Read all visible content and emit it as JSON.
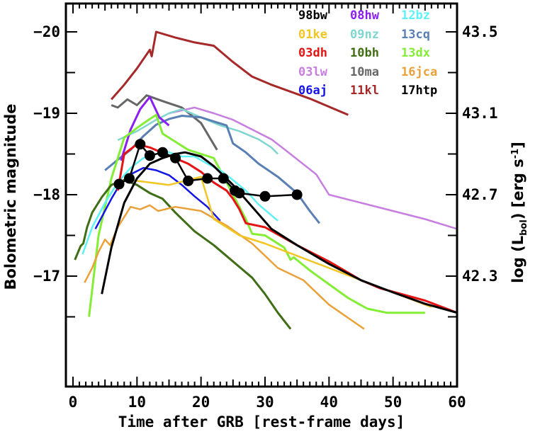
{
  "chart_data": {
    "type": "line",
    "title": "",
    "xlabel": "Time after GRB [rest-frame days]",
    "ylabel": "Bolometric magnitude",
    "ylabel_right": "log (L_bol)  [erg s^-1]",
    "ylabel_right_parts": {
      "pre": "log (L",
      "sub": "bol",
      "post": ")  [erg s",
      "sup": "-1",
      "end": "]"
    },
    "xlim": [
      -1.1,
      60
    ],
    "ylim": [
      -16.35,
      -20.35
    ],
    "x_ticks": [
      0,
      10,
      20,
      30,
      40,
      50,
      60
    ],
    "x_tick_labels": [
      "0",
      "10",
      "20",
      "30",
      "40",
      "50",
      "60"
    ],
    "y_ticks": [
      -20,
      -19,
      -18,
      -17
    ],
    "y_tick_labels": [
      "−20",
      "−19",
      "−18",
      "−17"
    ],
    "y_right_ticks": [
      -20,
      -19,
      -18,
      -17
    ],
    "y_right_tick_labels": [
      "43.5",
      "43.1",
      "42.7",
      "42.3"
    ],
    "grid": false,
    "legend_position": "top-right",
    "series": [
      {
        "name": "98bw",
        "color": "#000000",
        "width": 3,
        "x": [
          4.5,
          6,
          8,
          10,
          12,
          14,
          16,
          17.5,
          20,
          22,
          25,
          28,
          31,
          35,
          40,
          45,
          50,
          55,
          60
        ],
        "y": [
          -16.78,
          -17.35,
          -17.9,
          -18.2,
          -18.38,
          -18.45,
          -18.5,
          -18.52,
          -18.47,
          -18.35,
          -18.12,
          -17.85,
          -17.58,
          -17.38,
          -17.15,
          -16.95,
          -16.8,
          -16.66,
          -16.55
        ]
      },
      {
        "name": "01ke",
        "color": "#f2c523",
        "width": 2.5,
        "x": [
          9,
          12,
          15,
          18,
          20,
          22,
          26,
          30,
          35,
          40,
          45,
          50,
          56
        ],
        "y": [
          -18.18,
          -18.15,
          -18.12,
          -18.18,
          -18.22,
          -17.7,
          -17.5,
          -17.4,
          -17.25,
          -17.1,
          -16.95,
          -16.8,
          -16.62
        ]
      },
      {
        "name": "03dh",
        "color": "#e41414",
        "width": 3,
        "x": [
          7,
          8,
          10,
          12,
          15,
          18,
          20,
          22,
          24,
          25,
          26,
          27,
          30,
          35,
          40,
          45,
          48,
          55,
          60
        ],
        "y": [
          -18.05,
          -18.5,
          -18.62,
          -18.58,
          -18.48,
          -18.38,
          -18.28,
          -18.15,
          -18.05,
          -17.95,
          -17.82,
          -17.65,
          -17.6,
          -17.38,
          -17.18,
          -16.95,
          -16.85,
          -16.7,
          -16.55
        ]
      },
      {
        "name": "03lw",
        "color": "#c77ee0",
        "width": 2.5,
        "x": [
          15,
          19,
          22,
          25,
          28,
          31,
          33,
          38,
          40,
          45,
          50,
          55,
          60
        ],
        "y": [
          -19.0,
          -19.07,
          -19.0,
          -18.92,
          -18.8,
          -18.68,
          -18.56,
          -18.25,
          -18.0,
          -17.9,
          -17.8,
          -17.7,
          -17.58
        ]
      },
      {
        "name": "06aj",
        "color": "#1414e6",
        "width": 2.5,
        "x": [
          3.5,
          6,
          7.5,
          9,
          11,
          13,
          15,
          17,
          19,
          21,
          23
        ],
        "y": [
          -17.58,
          -17.95,
          -18.15,
          -18.25,
          -18.33,
          -18.3,
          -18.24,
          -18.12,
          -17.98,
          -17.85,
          -17.68
        ]
      },
      {
        "name": "08hw",
        "color": "#8a1ff0",
        "width": 3,
        "x": [
          7.5,
          9,
          10.5,
          12,
          13.5,
          15
        ],
        "y": [
          -18.42,
          -18.8,
          -19.05,
          -19.2,
          -18.95,
          -18.85
        ]
      },
      {
        "name": "09nz",
        "color": "#7fd6cf",
        "width": 2.5,
        "x": [
          7,
          10,
          13,
          15,
          17,
          20,
          23,
          26,
          29,
          31,
          32
        ],
        "y": [
          -18.67,
          -18.78,
          -18.92,
          -19.0,
          -19.05,
          -18.95,
          -18.85,
          -18.78,
          -18.68,
          -18.58,
          -18.5
        ]
      },
      {
        "name": "10bh",
        "color": "#3f6e16",
        "width": 3,
        "x": [
          0.3,
          1.2,
          1.6,
          2.2,
          3,
          4.5,
          6,
          8,
          10,
          12,
          14,
          16,
          19,
          22,
          25,
          28,
          30,
          32,
          34
        ],
        "y": [
          -17.2,
          -17.37,
          -17.4,
          -17.6,
          -17.78,
          -17.97,
          -18.12,
          -18.18,
          -18.12,
          -18.02,
          -17.95,
          -17.78,
          -17.55,
          -17.38,
          -17.18,
          -16.98,
          -16.78,
          -16.55,
          -16.35
        ]
      },
      {
        "name": "10ma",
        "color": "#666666",
        "width": 3,
        "x": [
          6,
          7,
          8.5,
          10,
          11.5,
          14,
          17,
          20,
          22.5
        ],
        "y": [
          -19.1,
          -19.07,
          -19.17,
          -19.1,
          -19.22,
          -19.15,
          -19.07,
          -18.88,
          -18.55
        ]
      },
      {
        "name": "11kl",
        "color": "#a62828",
        "width": 3,
        "x": [
          6,
          8,
          10,
          12,
          12.3,
          13,
          16,
          19,
          22,
          25,
          28,
          31,
          37,
          43
        ],
        "y": [
          -19.17,
          -19.35,
          -19.55,
          -19.78,
          -19.7,
          -20.0,
          -19.93,
          -19.87,
          -19.83,
          -19.63,
          -19.45,
          -19.35,
          -19.18,
          -18.98
        ]
      },
      {
        "name": "12bz",
        "color": "#5ef2f7",
        "width": 2.5,
        "x": [
          1.5,
          3,
          5,
          7,
          9,
          11,
          13,
          15,
          17,
          19,
          21,
          23,
          25,
          27,
          29,
          32
        ],
        "y": [
          -17.27,
          -17.6,
          -17.9,
          -18.15,
          -18.33,
          -18.45,
          -18.5,
          -18.52,
          -18.47,
          -18.47,
          -18.38,
          -18.3,
          -18.18,
          -18.05,
          -17.88,
          -17.68
        ]
      },
      {
        "name": "13cq",
        "color": "#5a7fb5",
        "width": 3,
        "x": [
          5,
          7,
          9,
          11,
          13,
          15,
          17,
          20,
          22,
          24,
          25,
          27,
          29,
          32,
          35,
          37,
          38.5
        ],
        "y": [
          -18.3,
          -18.43,
          -18.55,
          -18.72,
          -18.86,
          -18.93,
          -18.97,
          -18.95,
          -18.9,
          -18.85,
          -18.63,
          -18.52,
          -18.38,
          -18.22,
          -18.02,
          -17.8,
          -17.65
        ]
      },
      {
        "name": "13dx",
        "color": "#84ed35",
        "width": 3,
        "x": [
          2.5,
          4,
          6,
          8,
          10,
          12,
          13,
          14,
          15,
          18,
          22,
          23,
          25,
          27,
          28,
          30,
          33,
          34,
          34.5,
          37,
          40,
          43,
          46,
          49,
          52,
          55
        ],
        "y": [
          -16.5,
          -17.5,
          -18.2,
          -18.7,
          -18.82,
          -18.93,
          -18.98,
          -18.75,
          -18.7,
          -18.55,
          -18.45,
          -18.3,
          -18.0,
          -17.7,
          -17.52,
          -17.5,
          -17.35,
          -17.2,
          -17.23,
          -17.07,
          -16.9,
          -16.73,
          -16.6,
          -16.55,
          -16.55,
          -16.55
        ]
      },
      {
        "name": "16jca",
        "color": "#eba13a",
        "width": 2.5,
        "x": [
          1.8,
          3,
          4,
          5,
          5.8,
          7,
          9,
          10.5,
          12,
          13.3,
          16,
          20,
          24,
          28,
          32,
          36,
          40,
          45.5
        ],
        "y": [
          -16.92,
          -17.1,
          -17.3,
          -17.45,
          -17.38,
          -17.6,
          -17.85,
          -17.82,
          -17.87,
          -17.8,
          -17.85,
          -17.8,
          -17.62,
          -17.4,
          -17.1,
          -16.95,
          -16.65,
          -16.35
        ]
      },
      {
        "name": "17htp",
        "color": "#000000",
        "width": 2.5,
        "markers": true,
        "x": [
          7.2,
          8.8,
          10.5,
          12,
          14,
          16,
          18,
          21,
          23.5,
          25.3,
          26,
          30,
          35
        ],
        "y": [
          -18.13,
          -18.2,
          -18.62,
          -18.48,
          -18.52,
          -18.45,
          -18.17,
          -18.2,
          -18.2,
          -18.05,
          -18.02,
          -17.98,
          -18.0
        ]
      }
    ]
  }
}
